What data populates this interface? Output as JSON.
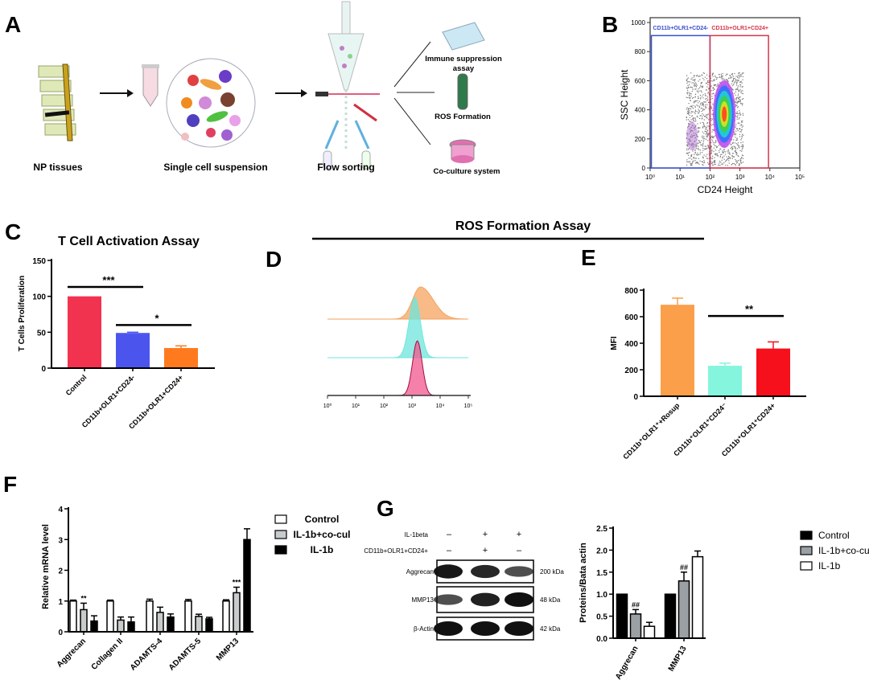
{
  "panel_labels": [
    "A",
    "B",
    "C",
    "D",
    "E",
    "F",
    "G"
  ],
  "panel_a": {
    "steps": [
      "NP tissues",
      "Single cell suspension",
      "Flow sorting"
    ],
    "outputs": [
      "Immune suppression",
      "assay",
      "ROS Formation",
      "Co-culture system"
    ]
  },
  "ros_header": "ROS  Formation Assay",
  "chart_data": [
    {
      "id": "B",
      "type": "scatter",
      "xlabel": "CD24 Height",
      "ylabel": "SSC Height",
      "xscale": "log",
      "xlim": [
        1,
        100000
      ],
      "ylim": [
        0,
        1000
      ],
      "xticks": [
        "10⁰",
        "10¹",
        "10²",
        "10³",
        "10⁴",
        "10⁵"
      ],
      "yticks": [
        0,
        200,
        400,
        600,
        800,
        1000
      ],
      "gates": [
        {
          "label": "CD11b+OLR1+CD24-",
          "x": [
            1.1,
            100
          ],
          "y": [
            0,
            910
          ],
          "color": "#3a4fd0"
        },
        {
          "label": "CD11b+OLR1+CD24+",
          "x": [
            100,
            9000
          ],
          "y": [
            0,
            910
          ],
          "color": "#d8344a"
        }
      ],
      "populations": [
        {
          "center_x": 300,
          "center_y": 370,
          "density": "high"
        },
        {
          "center_x": 25,
          "center_y": 220,
          "density": "medium"
        }
      ]
    },
    {
      "id": "C",
      "type": "bar",
      "title": "T Cell Activation Assay",
      "ylabel": "T Cells Proliferation",
      "ylim": [
        0,
        150
      ],
      "yticks": [
        0,
        50,
        100,
        150
      ],
      "categories": [
        "Control",
        "CD11b+OLR1+CD24-",
        "CD11b+OLR1+CD24+"
      ],
      "values": [
        100,
        49,
        28
      ],
      "errors": [
        0,
        1,
        3
      ],
      "colors": [
        "#f2334f",
        "#4b55ee",
        "#ff7a1f"
      ],
      "significance": [
        {
          "from": 0,
          "to": 1,
          "y": 113,
          "label": "***"
        },
        {
          "from": 1,
          "to": 2,
          "y": 60,
          "label": "*"
        }
      ]
    },
    {
      "id": "D",
      "type": "histogram",
      "xscale": "log",
      "xlim": [
        1,
        100000
      ],
      "xticks": [
        "10⁰",
        "10¹",
        "10²",
        "10³",
        "10⁴",
        "10⁵"
      ],
      "series": [
        {
          "peak": 2000,
          "width": 0.28,
          "color": "#f5a35f"
        },
        {
          "peak": 1250,
          "width": 0.2,
          "color": "#6ee6dc"
        },
        {
          "peak": 1550,
          "width": 0.17,
          "color": "#f2558c"
        }
      ]
    },
    {
      "id": "E",
      "type": "bar",
      "ylabel": "MFI",
      "ylim": [
        0,
        800
      ],
      "yticks": [
        0,
        200,
        400,
        600,
        800
      ],
      "categories": [
        "CD11b⁺OLR1⁺+Rosup",
        "CD11b⁺OLR1⁺CD24⁻",
        "CD11b⁺OLR1⁺CD24+"
      ],
      "values": [
        690,
        230,
        360
      ],
      "errors": [
        50,
        20,
        50
      ],
      "colors": [
        "#fb9f4b",
        "#86f5dd",
        "#f5101c"
      ],
      "significance": [
        {
          "from": 1,
          "to": 2,
          "y": 605,
          "label": "**"
        }
      ]
    },
    {
      "id": "F",
      "type": "bar",
      "ylabel": "Relative mRNA level",
      "ylim": [
        0,
        4
      ],
      "yticks": [
        0,
        1,
        2,
        3,
        4
      ],
      "categories": [
        "Aggrecan",
        "Collagen II",
        "ADAMTS-4",
        "ADAMTS-5",
        "MMP13"
      ],
      "series": [
        {
          "name": "Control",
          "color": "#ffffff",
          "values": [
            1.0,
            1.0,
            1.0,
            1.0,
            1.0
          ],
          "errors": [
            0.03,
            0.03,
            0.06,
            0.05,
            0.04
          ]
        },
        {
          "name": "IL-1b+co-cul",
          "color": "#c8cccc",
          "values": [
            0.72,
            0.38,
            0.63,
            0.5,
            1.27
          ],
          "errors": [
            0.21,
            0.1,
            0.17,
            0.07,
            0.18
          ]
        },
        {
          "name": "IL-1b",
          "color": "#000000",
          "values": [
            0.35,
            0.32,
            0.48,
            0.42,
            3.0
          ],
          "errors": [
            0.17,
            0.16,
            0.1,
            0.05,
            0.35
          ]
        }
      ],
      "annotations": [
        {
          "category": 0,
          "series": 1,
          "label": "**"
        },
        {
          "category": 4,
          "series": 1,
          "label": "***"
        }
      ]
    },
    {
      "id": "G",
      "type": "bar",
      "ylabel": "Proteins/Bata actin",
      "ylim": [
        0,
        2.5
      ],
      "yticks": [
        "0.0",
        "0.5",
        "1.0",
        "1.5",
        "2.0",
        "2.5"
      ],
      "categories": [
        "Aggrecan",
        "MMP13"
      ],
      "series": [
        {
          "name": "Control",
          "color": "#000000",
          "values": [
            1.0,
            1.0
          ],
          "errors": [
            0,
            0
          ]
        },
        {
          "name": "IL-1b+co-cu",
          "color": "#9aa0a4",
          "values": [
            0.55,
            1.3
          ],
          "errors": [
            0.1,
            0.2
          ]
        },
        {
          "name": "IL-1b",
          "color": "#ffffff",
          "values": [
            0.27,
            1.85
          ],
          "errors": [
            0.09,
            0.13
          ]
        }
      ],
      "annotations": [
        {
          "category": 0,
          "series": 1,
          "label": "##"
        },
        {
          "category": 1,
          "series": 1,
          "label": "##"
        }
      ]
    }
  ],
  "western_blot": {
    "conditions": [
      {
        "label": "IL-1beta",
        "lanes": [
          "–",
          "+",
          "+"
        ]
      },
      {
        "label": "CD11b+OLR1+CD24+",
        "lanes": [
          "–",
          "+",
          "–"
        ]
      }
    ],
    "rows": [
      {
        "protein": "Aggrecan",
        "size": "200 kDa",
        "intensity": [
          0.95,
          0.85,
          0.6
        ]
      },
      {
        "protein": "MMP13",
        "size": "48 kDa",
        "intensity": [
          0.6,
          0.9,
          1.0
        ]
      },
      {
        "protein": "β-Actin",
        "size": "42 kDa",
        "intensity": [
          1.0,
          1.0,
          1.0
        ]
      }
    ]
  }
}
